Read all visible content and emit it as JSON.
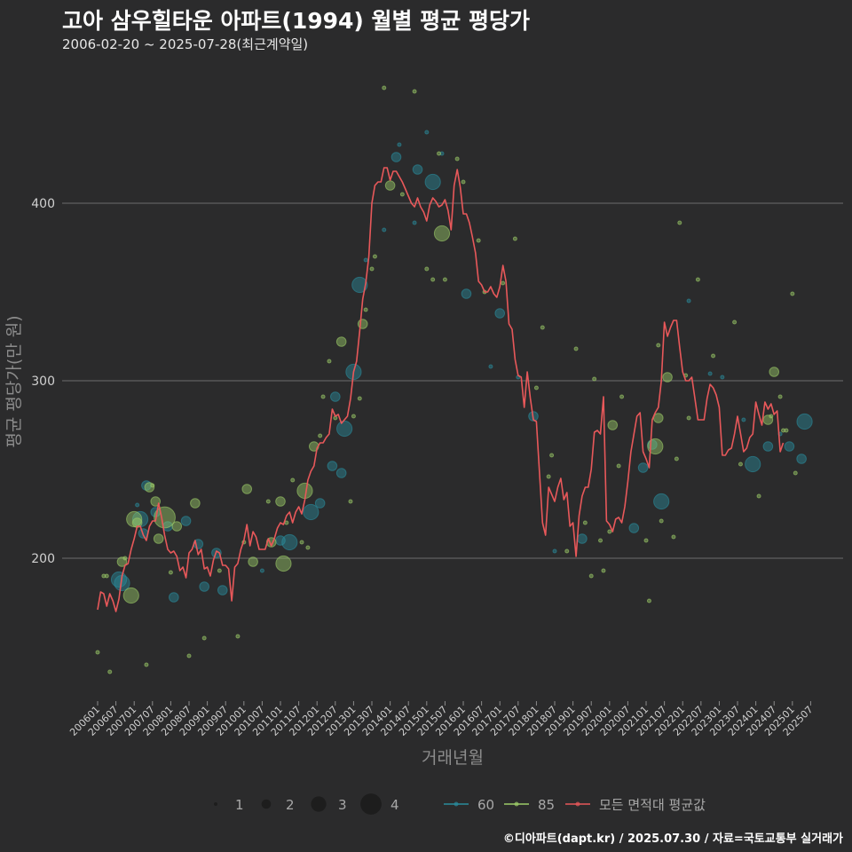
{
  "header": {
    "title": "고아 삼우힐타운 아파트(1994) 월별 평균 평당가",
    "subtitle": "2006-02-20 ~ 2025-07-28(최근계약일)"
  },
  "footer": {
    "credit": "©디아파트(dapt.kr) / 2025.07.30 / 자료=국토교통부 실거래가"
  },
  "colors": {
    "background": "#2b2b2c",
    "grid": "#6e6e6e",
    "area60": "#2a8c9c",
    "area85": "#9ccc68",
    "avg": "#e8585a"
  },
  "chart_data": {
    "type": "line",
    "xlabel": "거래년월",
    "ylabel": "평균 평당가(만 원)",
    "ylim": [
      120,
      480
    ],
    "yticks": [
      200,
      300,
      400
    ],
    "xlim": [
      0,
      233
    ],
    "xticks": [
      {
        "i": 0,
        "label": "200601"
      },
      {
        "i": 6,
        "label": "200607"
      },
      {
        "i": 12,
        "label": "200701"
      },
      {
        "i": 18,
        "label": "200707"
      },
      {
        "i": 24,
        "label": "200801"
      },
      {
        "i": 30,
        "label": "200807"
      },
      {
        "i": 36,
        "label": "200901"
      },
      {
        "i": 42,
        "label": "200907"
      },
      {
        "i": 48,
        "label": "201001"
      },
      {
        "i": 54,
        "label": "201007"
      },
      {
        "i": 60,
        "label": "201101"
      },
      {
        "i": 66,
        "label": "201107"
      },
      {
        "i": 72,
        "label": "201201"
      },
      {
        "i": 78,
        "label": "201207"
      },
      {
        "i": 84,
        "label": "201301"
      },
      {
        "i": 90,
        "label": "201307"
      },
      {
        "i": 96,
        "label": "201401"
      },
      {
        "i": 102,
        "label": "201407"
      },
      {
        "i": 108,
        "label": "201501"
      },
      {
        "i": 114,
        "label": "201507"
      },
      {
        "i": 120,
        "label": "201601"
      },
      {
        "i": 126,
        "label": "201607"
      },
      {
        "i": 132,
        "label": "201701"
      },
      {
        "i": 138,
        "label": "201707"
      },
      {
        "i": 144,
        "label": "201801"
      },
      {
        "i": 150,
        "label": "201807"
      },
      {
        "i": 156,
        "label": "201901"
      },
      {
        "i": 162,
        "label": "201907"
      },
      {
        "i": 168,
        "label": "202001"
      },
      {
        "i": 174,
        "label": "202007"
      },
      {
        "i": 180,
        "label": "202101"
      },
      {
        "i": 186,
        "label": "202107"
      },
      {
        "i": 192,
        "label": "202201"
      },
      {
        "i": 198,
        "label": "202207"
      },
      {
        "i": 204,
        "label": "202301"
      },
      {
        "i": 210,
        "label": "202307"
      },
      {
        "i": 216,
        "label": "202401"
      },
      {
        "i": 222,
        "label": "202407"
      },
      {
        "i": 228,
        "label": "202501"
      },
      {
        "i": 234,
        "label": "202507"
      }
    ],
    "size_legend": [
      {
        "label": "1",
        "count": 1
      },
      {
        "label": "2",
        "count": 2
      },
      {
        "label": "3",
        "count": 3
      },
      {
        "label": "4",
        "count": 4
      }
    ],
    "series": [
      {
        "name": "60",
        "color": "#2a8c9c",
        "points": [
          [
            7,
            188,
            3
          ],
          [
            8,
            186,
            3
          ],
          [
            13,
            230,
            1
          ],
          [
            14,
            222,
            3
          ],
          [
            15,
            214,
            2
          ],
          [
            16,
            241,
            2
          ],
          [
            19,
            226,
            2
          ],
          [
            23,
            218,
            2
          ],
          [
            25,
            178,
            2
          ],
          [
            29,
            221,
            2
          ],
          [
            33,
            208,
            2
          ],
          [
            35,
            184,
            2
          ],
          [
            39,
            203,
            2
          ],
          [
            41,
            182,
            2
          ],
          [
            54,
            193,
            1
          ],
          [
            60,
            210,
            2
          ],
          [
            63,
            209,
            3
          ],
          [
            70,
            226,
            3
          ],
          [
            73,
            231,
            2
          ],
          [
            77,
            252,
            2
          ],
          [
            78,
            291,
            2
          ],
          [
            80,
            248,
            2
          ],
          [
            81,
            273,
            3
          ],
          [
            84,
            305,
            3
          ],
          [
            86,
            354,
            3
          ],
          [
            88,
            368,
            1
          ],
          [
            94,
            385,
            1
          ],
          [
            98,
            426,
            2
          ],
          [
            99,
            433,
            1
          ],
          [
            104,
            389,
            1
          ],
          [
            105,
            419,
            2
          ],
          [
            108,
            440,
            1
          ],
          [
            110,
            412,
            3
          ],
          [
            113,
            428,
            1
          ],
          [
            121,
            349,
            2
          ],
          [
            129,
            308,
            1
          ],
          [
            132,
            338,
            2
          ],
          [
            138,
            302,
            1
          ],
          [
            143,
            280,
            2
          ],
          [
            150,
            204,
            1
          ],
          [
            159,
            211,
            2
          ],
          [
            176,
            217,
            2
          ],
          [
            179,
            251,
            2
          ],
          [
            182,
            264,
            2
          ],
          [
            185,
            232,
            3
          ],
          [
            194,
            345,
            1
          ],
          [
            201,
            304,
            1
          ],
          [
            205,
            302,
            1
          ],
          [
            212,
            278,
            1
          ],
          [
            215,
            253,
            3
          ],
          [
            220,
            263,
            2
          ],
          [
            224,
            270,
            1
          ],
          [
            227,
            263,
            2
          ],
          [
            231,
            256,
            2
          ],
          [
            232,
            277,
            3
          ]
        ]
      },
      {
        "name": "85",
        "color": "#9ccc68",
        "points": [
          [
            0,
            147,
            1
          ],
          [
            2,
            190,
            1
          ],
          [
            3,
            190,
            1
          ],
          [
            4,
            136,
            1
          ],
          [
            8,
            198,
            2
          ],
          [
            9,
            200,
            1
          ],
          [
            11,
            179,
            3
          ],
          [
            12,
            222,
            3
          ],
          [
            13,
            220,
            2
          ],
          [
            16,
            140,
            1
          ],
          [
            17,
            240,
            2
          ],
          [
            18,
            241,
            1
          ],
          [
            19,
            232,
            2
          ],
          [
            20,
            211,
            2
          ],
          [
            22,
            223,
            4
          ],
          [
            24,
            192,
            1
          ],
          [
            26,
            218,
            2
          ],
          [
            30,
            145,
            1
          ],
          [
            32,
            231,
            2
          ],
          [
            35,
            155,
            1
          ],
          [
            40,
            193,
            1
          ],
          [
            46,
            156,
            1
          ],
          [
            48,
            209,
            1
          ],
          [
            49,
            239,
            2
          ],
          [
            51,
            198,
            2
          ],
          [
            56,
            232,
            1
          ],
          [
            57,
            209,
            2
          ],
          [
            60,
            232,
            2
          ],
          [
            61,
            197,
            3
          ],
          [
            62,
            220,
            1
          ],
          [
            64,
            244,
            1
          ],
          [
            67,
            209,
            1
          ],
          [
            68,
            238,
            3
          ],
          [
            69,
            206,
            1
          ],
          [
            71,
            263,
            2
          ],
          [
            73,
            269,
            1
          ],
          [
            74,
            291,
            1
          ],
          [
            76,
            311,
            1
          ],
          [
            78,
            279,
            1
          ],
          [
            80,
            322,
            2
          ],
          [
            83,
            232,
            1
          ],
          [
            84,
            280,
            1
          ],
          [
            86,
            290,
            1
          ],
          [
            87,
            332,
            2
          ],
          [
            88,
            340,
            1
          ],
          [
            90,
            363,
            1
          ],
          [
            91,
            370,
            1
          ],
          [
            94,
            465,
            1
          ],
          [
            96,
            410,
            2
          ],
          [
            100,
            405,
            1
          ],
          [
            104,
            463,
            1
          ],
          [
            108,
            363,
            1
          ],
          [
            110,
            357,
            1
          ],
          [
            112,
            428,
            1
          ],
          [
            113,
            383,
            3
          ],
          [
            114,
            357,
            1
          ],
          [
            118,
            425,
            1
          ],
          [
            120,
            412,
            1
          ],
          [
            125,
            379,
            1
          ],
          [
            127,
            350,
            1
          ],
          [
            133,
            355,
            1
          ],
          [
            137,
            380,
            1
          ],
          [
            144,
            296,
            1
          ],
          [
            146,
            330,
            1
          ],
          [
            148,
            246,
            1
          ],
          [
            149,
            258,
            1
          ],
          [
            154,
            204,
            1
          ],
          [
            157,
            318,
            1
          ],
          [
            160,
            220,
            1
          ],
          [
            162,
            190,
            1
          ],
          [
            163,
            301,
            1
          ],
          [
            165,
            210,
            1
          ],
          [
            166,
            193,
            1
          ],
          [
            168,
            215,
            1
          ],
          [
            169,
            275,
            2
          ],
          [
            171,
            252,
            1
          ],
          [
            172,
            291,
            1
          ],
          [
            180,
            210,
            1
          ],
          [
            181,
            176,
            1
          ],
          [
            183,
            263,
            3
          ],
          [
            184,
            279,
            2
          ],
          [
            184,
            320,
            1
          ],
          [
            185,
            221,
            1
          ],
          [
            187,
            302,
            2
          ],
          [
            189,
            212,
            1
          ],
          [
            190,
            256,
            1
          ],
          [
            191,
            389,
            1
          ],
          [
            193,
            303,
            1
          ],
          [
            194,
            279,
            1
          ],
          [
            197,
            357,
            1
          ],
          [
            202,
            314,
            1
          ],
          [
            209,
            333,
            1
          ],
          [
            211,
            253,
            1
          ],
          [
            217,
            235,
            1
          ],
          [
            220,
            278,
            2
          ],
          [
            221,
            280,
            1
          ],
          [
            222,
            305,
            2
          ],
          [
            224,
            291,
            1
          ],
          [
            225,
            272,
            1
          ],
          [
            226,
            272,
            1
          ],
          [
            228,
            349,
            1
          ],
          [
            229,
            248,
            1
          ]
        ]
      },
      {
        "name": "모든 면적대 평균값",
        "color": "#e8585a",
        "values": [
          171,
          181,
          180,
          173,
          180,
          176,
          170,
          177,
          190,
          196,
          197,
          205,
          211,
          218,
          218,
          213,
          210,
          218,
          221,
          221,
          231,
          223,
          213,
          205,
          203,
          204,
          201,
          193,
          195,
          189,
          203,
          205,
          210,
          202,
          205,
          194,
          195,
          190,
          199,
          204,
          203,
          196,
          196,
          194,
          176,
          195,
          197,
          205,
          210,
          219,
          207,
          215,
          212,
          205,
          205,
          205,
          211,
          207,
          211,
          217,
          220,
          219,
          224,
          226,
          220,
          226,
          229,
          225,
          233,
          244,
          249,
          252,
          262,
          265,
          265,
          268,
          270,
          284,
          280,
          281,
          276,
          278,
          280,
          290,
          305,
          311,
          328,
          346,
          355,
          370,
          400,
          410,
          412,
          412,
          420,
          420,
          413,
          418,
          418,
          415,
          412,
          408,
          404,
          400,
          398,
          403,
          398,
          395,
          390,
          399,
          403,
          401,
          398,
          399,
          402,
          396,
          385,
          410,
          419,
          409,
          394,
          394,
          389,
          381,
          372,
          356,
          354,
          350,
          350,
          353,
          349,
          347,
          353,
          365,
          356,
          332,
          329,
          312,
          303,
          302,
          285,
          305,
          290,
          278,
          277,
          248,
          220,
          213,
          240,
          236,
          232,
          240,
          245,
          233,
          237,
          218,
          220,
          201,
          224,
          235,
          240,
          240,
          250,
          271,
          272,
          270,
          291,
          221,
          219,
          215,
          222,
          223,
          220,
          229,
          243,
          260,
          270,
          280,
          282,
          260,
          256,
          251,
          278,
          282,
          285,
          300,
          333,
          325,
          330,
          334,
          334,
          319,
          305,
          300,
          300,
          302,
          290,
          278,
          278,
          278,
          290,
          298,
          296,
          292,
          285,
          258,
          258,
          261,
          262,
          270,
          280,
          270,
          260,
          262,
          268,
          270,
          288,
          281,
          275,
          288,
          284,
          287,
          281,
          283,
          260,
          265
        ]
      }
    ]
  }
}
